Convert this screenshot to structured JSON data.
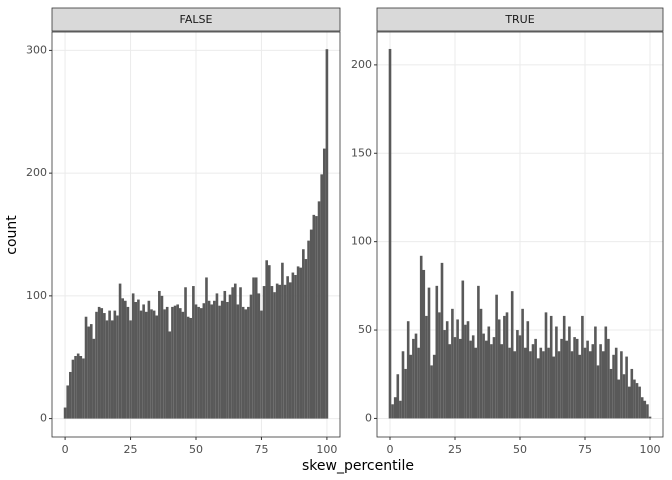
{
  "chart_data": [
    {
      "type": "histogram",
      "title": "FALSE",
      "xlabel": "skew_percentile",
      "ylabel": "count",
      "color": "#595959",
      "grid": true,
      "bins": [
        -0.5,
        0.5,
        1.5,
        2.5,
        3.5,
        4.5,
        5.5,
        6.5,
        7.5,
        8.5,
        9.5,
        10.5,
        11.5,
        12.5,
        13.5,
        14.5,
        15.5,
        16.5,
        17.5,
        18.5,
        19.5,
        20.5,
        21.5,
        22.5,
        23.5,
        24.5,
        25.5,
        26.5,
        27.5,
        28.5,
        29.5,
        30.5,
        31.5,
        32.5,
        33.5,
        34.5,
        35.5,
        36.5,
        37.5,
        38.5,
        39.5,
        40.5,
        41.5,
        42.5,
        43.5,
        44.5,
        45.5,
        46.5,
        47.5,
        48.5,
        49.5,
        50.5,
        51.5,
        52.5,
        53.5,
        54.5,
        55.5,
        56.5,
        57.5,
        58.5,
        59.5,
        60.5,
        61.5,
        62.5,
        63.5,
        64.5,
        65.5,
        66.5,
        67.5,
        68.5,
        69.5,
        70.5,
        71.5,
        72.5,
        73.5,
        74.5,
        75.5,
        76.5,
        77.5,
        78.5,
        79.5,
        80.5,
        81.5,
        82.5,
        83.5,
        84.5,
        85.5,
        86.5,
        87.5,
        88.5,
        89.5,
        90.5,
        91.5,
        92.5,
        93.5,
        94.5,
        95.5,
        96.5,
        97.5,
        98.5,
        99.5,
        100.5
      ],
      "values": [
        9,
        27,
        38,
        48,
        51,
        53,
        51,
        49,
        83,
        75,
        77,
        65,
        87,
        91,
        90,
        86,
        80,
        88,
        80,
        88,
        84,
        110,
        98,
        96,
        91,
        80,
        102,
        95,
        97,
        88,
        93,
        87,
        96,
        89,
        88,
        84,
        104,
        100,
        89,
        91,
        71,
        91,
        92,
        93,
        90,
        87,
        107,
        83,
        82,
        108,
        93,
        91,
        90,
        94,
        115,
        96,
        93,
        96,
        102,
        92,
        96,
        104,
        95,
        101,
        107,
        110,
        93,
        107,
        91,
        89,
        91,
        101,
        115,
        115,
        102,
        88,
        108,
        129,
        125,
        108,
        103,
        110,
        109,
        127,
        109,
        116,
        111,
        119,
        117,
        124,
        123,
        138,
        130,
        145,
        154,
        166,
        165,
        177,
        199,
        220,
        301
      ],
      "xlim": [
        -5,
        105
      ],
      "xticks": [
        0,
        25,
        50,
        75,
        100
      ],
      "ylim": [
        -15,
        315
      ],
      "yticks": [
        0,
        100,
        200,
        300
      ]
    },
    {
      "type": "histogram",
      "title": "TRUE",
      "color": "#595959",
      "grid": true,
      "bins": [
        -0.5,
        0.5,
        1.5,
        2.5,
        3.5,
        4.5,
        5.5,
        6.5,
        7.5,
        8.5,
        9.5,
        10.5,
        11.5,
        12.5,
        13.5,
        14.5,
        15.5,
        16.5,
        17.5,
        18.5,
        19.5,
        20.5,
        21.5,
        22.5,
        23.5,
        24.5,
        25.5,
        26.5,
        27.5,
        28.5,
        29.5,
        30.5,
        31.5,
        32.5,
        33.5,
        34.5,
        35.5,
        36.5,
        37.5,
        38.5,
        39.5,
        40.5,
        41.5,
        42.5,
        43.5,
        44.5,
        45.5,
        46.5,
        47.5,
        48.5,
        49.5,
        50.5,
        51.5,
        52.5,
        53.5,
        54.5,
        55.5,
        56.5,
        57.5,
        58.5,
        59.5,
        60.5,
        61.5,
        62.5,
        63.5,
        64.5,
        65.5,
        66.5,
        67.5,
        68.5,
        69.5,
        70.5,
        71.5,
        72.5,
        73.5,
        74.5,
        75.5,
        76.5,
        77.5,
        78.5,
        79.5,
        80.5,
        81.5,
        82.5,
        83.5,
        84.5,
        85.5,
        86.5,
        87.5,
        88.5,
        89.5,
        90.5,
        91.5,
        92.5,
        93.5,
        94.5,
        95.5,
        96.5,
        97.5,
        98.5,
        99.5,
        100.5
      ],
      "values": [
        209,
        8,
        12,
        25,
        10,
        38,
        28,
        55,
        36,
        45,
        48,
        40,
        92,
        84,
        58,
        74,
        30,
        36,
        75,
        60,
        88,
        50,
        55,
        42,
        62,
        46,
        56,
        45,
        78,
        53,
        55,
        44,
        47,
        40,
        75,
        62,
        48,
        44,
        52,
        42,
        46,
        70,
        56,
        42,
        58,
        60,
        40,
        72,
        38,
        50,
        47,
        62,
        40,
        55,
        38,
        42,
        45,
        34,
        40,
        38,
        60,
        40,
        58,
        35,
        52,
        38,
        45,
        58,
        44,
        52,
        38,
        46,
        45,
        36,
        58,
        40,
        44,
        38,
        42,
        52,
        30,
        42,
        38,
        52,
        45,
        28,
        36,
        40,
        22,
        38,
        25,
        35,
        18,
        28,
        22,
        20,
        18,
        12,
        10,
        8,
        1
      ],
      "xlim": [
        -5,
        105
      ],
      "xticks": [
        0,
        25,
        50,
        75,
        100
      ],
      "ylim": [
        -10.5,
        218.6
      ],
      "yticks": [
        0,
        50,
        100,
        150,
        200
      ]
    }
  ]
}
